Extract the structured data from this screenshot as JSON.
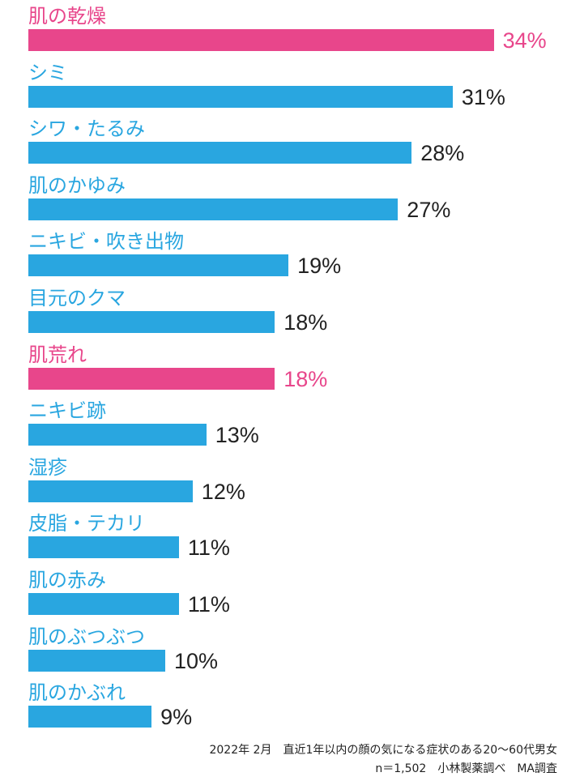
{
  "chart_data": {
    "type": "bar",
    "orientation": "horizontal",
    "categories": [
      "肌の乾燥",
      "シミ",
      "シワ・たるみ",
      "肌のかゆみ",
      "ニキビ・吹き出物",
      "目元のクマ",
      "肌荒れ",
      "ニキビ跡",
      "湿疹",
      "皮脂・テカリ",
      "肌の赤み",
      "肌のぶつぶつ",
      "肌のかぶれ"
    ],
    "values": [
      34,
      31,
      28,
      27,
      19,
      18,
      18,
      13,
      12,
      11,
      11,
      10,
      9
    ],
    "value_labels": [
      "34%",
      "31%",
      "28%",
      "27%",
      "19%",
      "18%",
      "18%",
      "13%",
      "12%",
      "11%",
      "11%",
      "10%",
      "9%"
    ],
    "highlighted": [
      true,
      false,
      false,
      false,
      false,
      false,
      true,
      false,
      false,
      false,
      false,
      false,
      false
    ],
    "unit": "%",
    "xlim": [
      0,
      36
    ]
  },
  "colors": {
    "highlight": "#e8468b",
    "default": "#29a6e0",
    "value_text": "#222222"
  },
  "footnote": {
    "line1": "2022年 2月　直近1年以内の顔の気になる症状のある20～60代男女",
    "line2": "n＝1,502　小林製薬調べ　MA調査"
  }
}
